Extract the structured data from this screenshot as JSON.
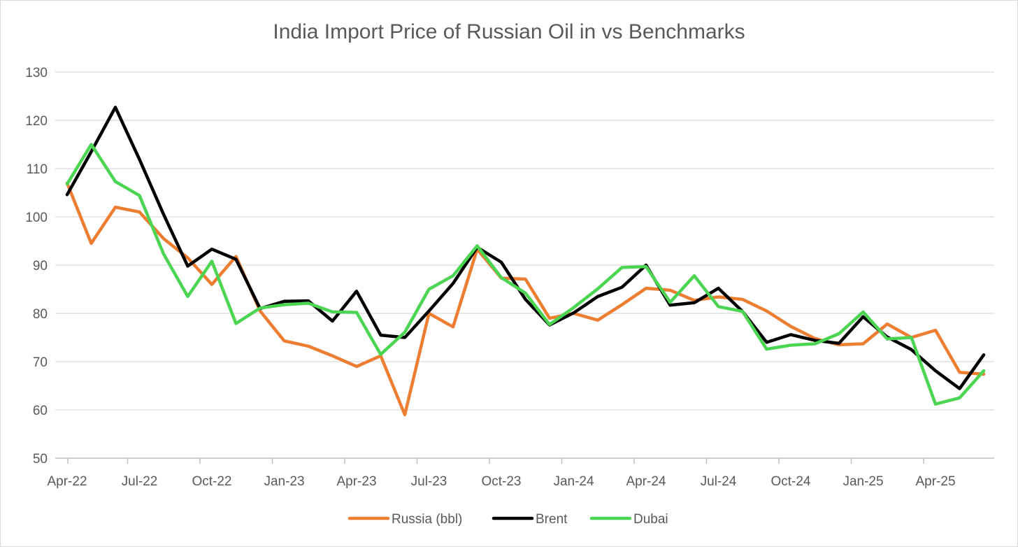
{
  "chart_data": {
    "type": "line",
    "title": "India Import Price of Russian Oil in vs Benchmarks",
    "xlabel": "",
    "ylabel": "",
    "ylim": [
      50,
      130
    ],
    "yticks": [
      50,
      60,
      70,
      80,
      90,
      100,
      110,
      120,
      130
    ],
    "x": [
      "Apr-22",
      "May-22",
      "Jun-22",
      "Jul-22",
      "Aug-22",
      "Sep-22",
      "Oct-22",
      "Nov-22",
      "Dec-22",
      "Jan-23",
      "Feb-23",
      "Mar-23",
      "Apr-23",
      "May-23",
      "Jun-23",
      "Jul-23",
      "Aug-23",
      "Sep-23",
      "Oct-23",
      "Nov-23",
      "Dec-23",
      "Jan-24",
      "Feb-24",
      "Mar-24",
      "Apr-24",
      "May-24",
      "Jun-24",
      "Jul-24",
      "Aug-24",
      "Sep-24",
      "Oct-24",
      "Nov-24",
      "Dec-24",
      "Jan-25",
      "Feb-25",
      "Mar-25",
      "Apr-25",
      "May-25",
      "Jun-25"
    ],
    "xtick_labels": [
      "Apr-22",
      "Jul-22",
      "Oct-22",
      "Jan-23",
      "Apr-23",
      "Jul-23",
      "Oct-23",
      "Jan-24",
      "Apr-24",
      "Jul-24",
      "Oct-24",
      "Jan-25",
      "Apr-25"
    ],
    "grid": true,
    "legend_position": "bottom",
    "series": [
      {
        "name": "Russia (bbl)",
        "color": "#ed7d31",
        "values": [
          107,
          94.5,
          102,
          101,
          95.5,
          91.5,
          86,
          91.8,
          80.5,
          74.3,
          73.2,
          71.2,
          69,
          71.2,
          59,
          80,
          77.2,
          93.3,
          87.3,
          87.1,
          79,
          80,
          78.6,
          81.8,
          85.2,
          84.8,
          82.7,
          83.4,
          82.9,
          80.5,
          77.3,
          74.8,
          73.5,
          73.7,
          77.8,
          75,
          76.5,
          67.8,
          67.4
        ]
      },
      {
        "name": "Brent",
        "color": "#000000",
        "values": [
          104.6,
          113.5,
          122.7,
          111.9,
          100.5,
          89.8,
          93.3,
          91.2,
          81,
          82.5,
          82.6,
          78.4,
          84.6,
          75.5,
          75,
          80.5,
          86.2,
          93.7,
          90.6,
          82.9,
          77.6,
          80.1,
          83.5,
          85.4,
          90,
          81.7,
          82.2,
          85.2,
          80.4,
          74,
          75.6,
          74.4,
          73.8,
          79.3,
          75.1,
          72.5,
          68.1,
          64.4,
          71.4
        ]
      },
      {
        "name": "Dubai",
        "color": "#4cd552",
        "values": [
          106.8,
          115,
          107.3,
          104.4,
          92.3,
          83.5,
          90.8,
          77.9,
          81.1,
          81.8,
          82.1,
          80.3,
          80.2,
          71.5,
          76.1,
          85,
          87.8,
          94,
          87.4,
          84.2,
          77.7,
          81.2,
          85.1,
          89.5,
          89.7,
          82.3,
          87.8,
          81.4,
          80.4,
          72.6,
          73.4,
          73.7,
          75.8,
          80.3,
          74.7,
          75,
          61.2,
          62.5,
          68.1
        ]
      }
    ]
  }
}
